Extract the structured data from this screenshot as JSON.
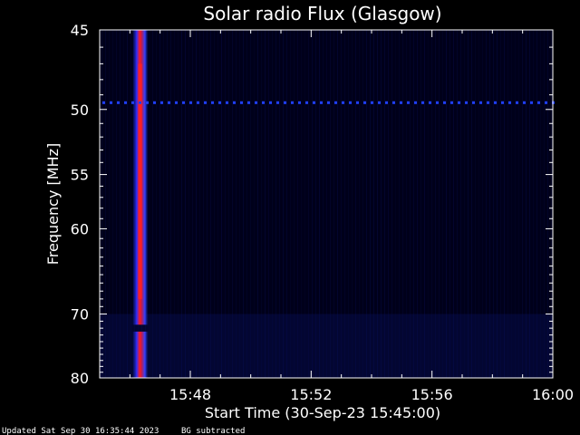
{
  "chart_data": {
    "type": "heatmap",
    "title": "Solar radio Flux (Glasgow)",
    "xlabel": "Start Time (30-Sep-23 15:45:00)",
    "ylabel": "Frequency [MHz]",
    "x_ticks": [
      "15:48",
      "15:52",
      "15:56",
      "16:00"
    ],
    "x_tick_minutes": [
      48,
      52,
      56,
      60
    ],
    "xlim_minutes": [
      45,
      60
    ],
    "y_ticks": [
      45,
      50,
      55,
      60,
      70,
      80
    ],
    "ylim": [
      45,
      80
    ],
    "y_scale": "reciprocal",
    "background": "BG subtracted",
    "updated": "Updated Sat Sep 30 16:35:44 2023",
    "colors": {
      "background": "#000000",
      "plot": "#00001a",
      "axis": "#ffffff",
      "low": "#1020ff",
      "high": "#ff1010"
    },
    "features": {
      "burst_start_minute": 46.1,
      "burst_end_minute": 46.6,
      "burst_gap_frequency": [
        71.5,
        72.5
      ],
      "interference_frequency": 49.5
    }
  },
  "footer": {
    "updated": "Updated Sat Sep 30 16:35:44 2023",
    "note": "BG subtracted"
  }
}
